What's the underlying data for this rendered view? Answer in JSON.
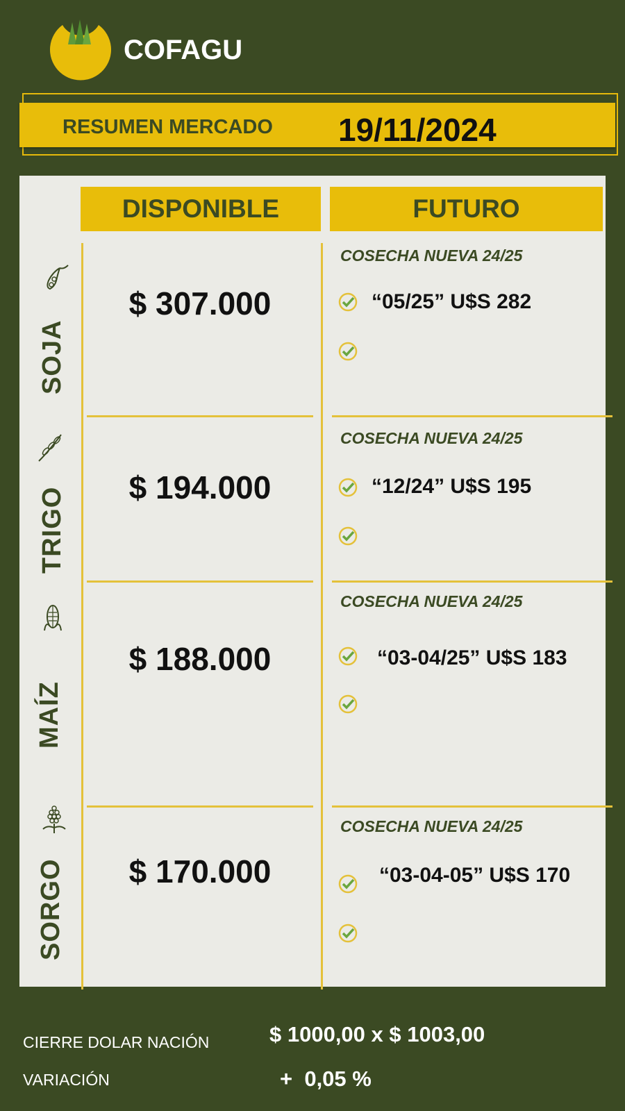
{
  "brand": {
    "name": "COFAGU",
    "colors": {
      "background": "#3b4a23",
      "accent": "#e8bd0a",
      "panel": "#ebebe6"
    }
  },
  "header": {
    "title": "RESUMEN MERCADO",
    "date": "19/11/2024"
  },
  "columns": {
    "disponible": "DISPONIBLE",
    "futuro": "FUTURO"
  },
  "rows": [
    {
      "crop": "SOJA",
      "icon": "soybean-icon",
      "price": "$ 307.000",
      "cosecha": "COSECHA NUEVA 24/25",
      "futures": [
        "“05/25” U$S 282",
        ""
      ]
    },
    {
      "crop": "TRIGO",
      "icon": "wheat-icon",
      "price": "$ 194.000",
      "cosecha": "COSECHA NUEVA 24/25",
      "futures": [
        "“12/24” U$S 195",
        ""
      ]
    },
    {
      "crop": "MAÍZ",
      "icon": "corn-icon",
      "price": "$ 188.000",
      "cosecha": "COSECHA NUEVA 24/25",
      "futures": [
        "“03-04/25” U$S 183",
        ""
      ]
    },
    {
      "crop": "SORGO",
      "icon": "sorghum-icon",
      "price": "$ 170.000",
      "cosecha": "COSECHA NUEVA 24/25",
      "futures": [
        "“03-04-05” U$S 170",
        ""
      ]
    }
  ],
  "footer": {
    "dolar_label": "CIERRE DOLAR NACIÓN",
    "dolar_value": "$ 1000,00 x $ 1003,00",
    "variacion_label": "VARIACIÓN",
    "variacion_value": "+  0,05 %"
  }
}
